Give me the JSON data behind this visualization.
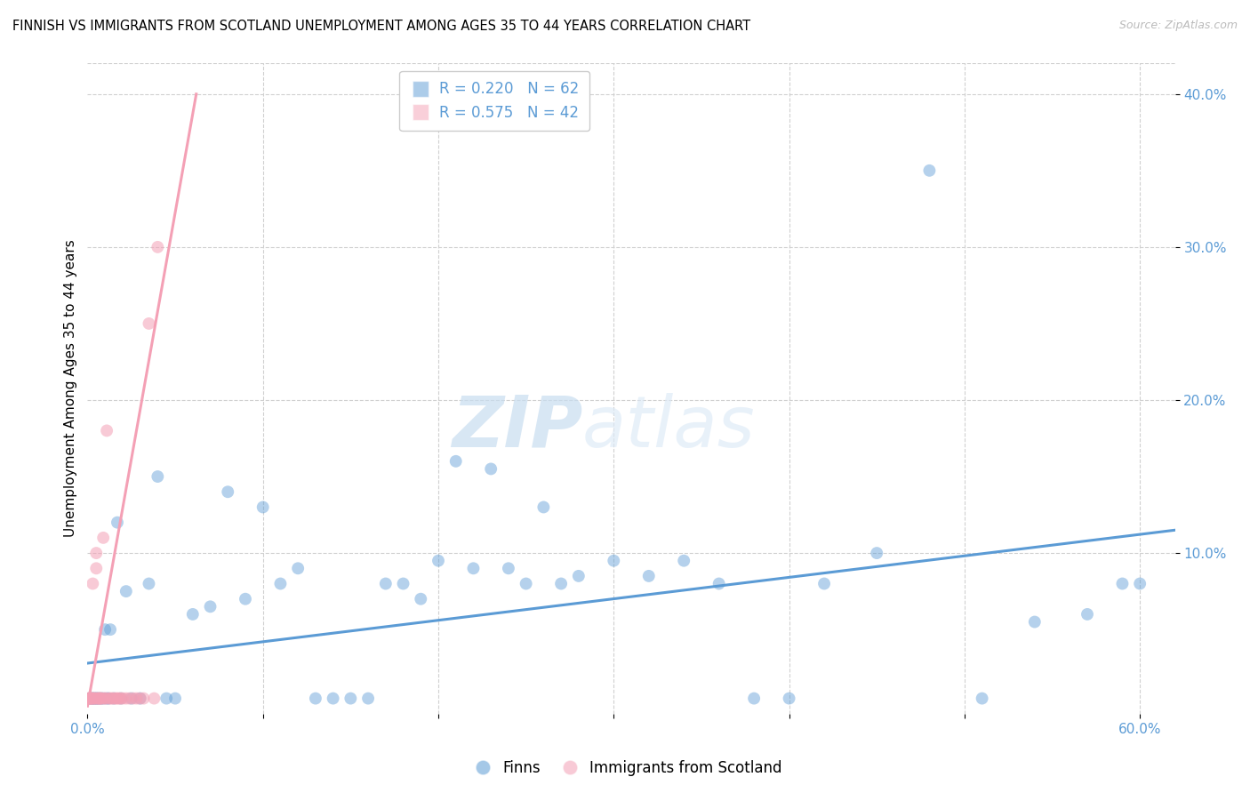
{
  "title": "FINNISH VS IMMIGRANTS FROM SCOTLAND UNEMPLOYMENT AMONG AGES 35 TO 44 YEARS CORRELATION CHART",
  "source": "Source: ZipAtlas.com",
  "ylabel": "Unemployment Among Ages 35 to 44 years",
  "xlim": [
    0.0,
    0.62
  ],
  "ylim": [
    -0.005,
    0.42
  ],
  "xtick_positions": [
    0.0,
    0.1,
    0.2,
    0.3,
    0.4,
    0.5,
    0.6
  ],
  "xtick_labels": [
    "0.0%",
    "",
    "",
    "",
    "",
    "",
    "60.0%"
  ],
  "yticks_right": [
    0.1,
    0.2,
    0.3,
    0.4
  ],
  "title_fontsize": 11,
  "axis_color": "#5b9bd5",
  "label_color": "#5b9bd5",
  "background_color": "#ffffff",
  "watermark_zip": "ZIP",
  "watermark_atlas": "atlas",
  "legend_R1": "R = 0.220",
  "legend_N1": "N = 62",
  "legend_R2": "R = 0.575",
  "legend_N2": "N = 42",
  "blue_color": "#5b9bd5",
  "pink_color": "#f4a0b5",
  "blue_scatter": {
    "x": [
      0.001,
      0.002,
      0.003,
      0.003,
      0.004,
      0.005,
      0.005,
      0.006,
      0.007,
      0.008,
      0.009,
      0.01,
      0.011,
      0.012,
      0.013,
      0.015,
      0.017,
      0.019,
      0.022,
      0.025,
      0.03,
      0.035,
      0.04,
      0.045,
      0.05,
      0.06,
      0.07,
      0.08,
      0.09,
      0.1,
      0.11,
      0.12,
      0.13,
      0.14,
      0.15,
      0.16,
      0.17,
      0.18,
      0.19,
      0.2,
      0.21,
      0.22,
      0.23,
      0.24,
      0.25,
      0.26,
      0.27,
      0.28,
      0.3,
      0.32,
      0.34,
      0.36,
      0.38,
      0.4,
      0.42,
      0.45,
      0.48,
      0.51,
      0.54,
      0.57,
      0.59,
      0.6
    ],
    "y": [
      0.005,
      0.005,
      0.005,
      0.005,
      0.005,
      0.005,
      0.005,
      0.005,
      0.005,
      0.005,
      0.005,
      0.05,
      0.005,
      0.005,
      0.05,
      0.005,
      0.12,
      0.005,
      0.075,
      0.005,
      0.005,
      0.08,
      0.15,
      0.005,
      0.005,
      0.06,
      0.065,
      0.14,
      0.07,
      0.13,
      0.08,
      0.09,
      0.005,
      0.005,
      0.005,
      0.005,
      0.08,
      0.08,
      0.07,
      0.095,
      0.16,
      0.09,
      0.155,
      0.09,
      0.08,
      0.13,
      0.08,
      0.085,
      0.095,
      0.085,
      0.095,
      0.08,
      0.005,
      0.005,
      0.08,
      0.1,
      0.35,
      0.005,
      0.055,
      0.06,
      0.08,
      0.08
    ]
  },
  "pink_scatter": {
    "x": [
      0.001,
      0.001,
      0.001,
      0.002,
      0.002,
      0.002,
      0.003,
      0.003,
      0.003,
      0.004,
      0.004,
      0.005,
      0.005,
      0.005,
      0.006,
      0.006,
      0.007,
      0.007,
      0.008,
      0.008,
      0.009,
      0.01,
      0.01,
      0.011,
      0.012,
      0.013,
      0.014,
      0.015,
      0.016,
      0.017,
      0.018,
      0.019,
      0.02,
      0.022,
      0.024,
      0.026,
      0.028,
      0.03,
      0.032,
      0.035,
      0.038,
      0.04
    ],
    "y": [
      0.005,
      0.005,
      0.005,
      0.005,
      0.005,
      0.005,
      0.005,
      0.005,
      0.08,
      0.005,
      0.005,
      0.005,
      0.1,
      0.09,
      0.005,
      0.005,
      0.005,
      0.005,
      0.005,
      0.005,
      0.11,
      0.005,
      0.005,
      0.18,
      0.005,
      0.005,
      0.005,
      0.005,
      0.005,
      0.005,
      0.005,
      0.005,
      0.005,
      0.005,
      0.005,
      0.005,
      0.005,
      0.005,
      0.005,
      0.25,
      0.005,
      0.3
    ]
  },
  "blue_line": {
    "x0": 0.0,
    "x1": 0.62,
    "y0": 0.028,
    "y1": 0.115
  },
  "pink_line": {
    "x0": 0.0,
    "x1": 0.062,
    "y0": 0.0,
    "y1": 0.4
  }
}
